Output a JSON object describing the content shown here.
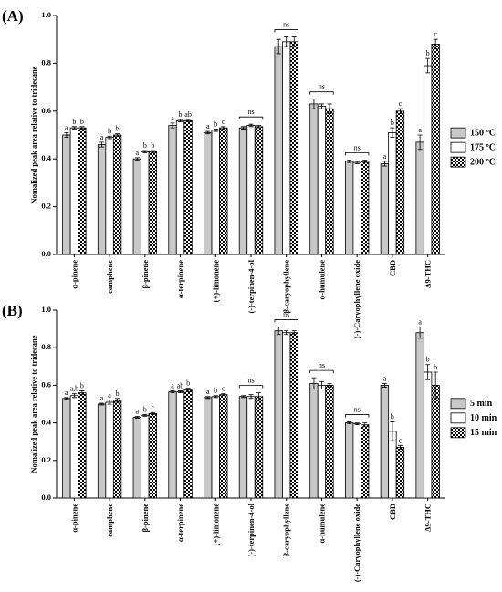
{
  "chart_data": [
    {
      "type": "bar",
      "panel_label": "(A)",
      "ylabel": "Nomalized peak area relative to tridecane",
      "categories": [
        "α-pinene",
        "camphene",
        "β-pinene",
        "α-terpinene",
        "(+)-limonene",
        "(-)-terpinen-4-ol",
        "β-caryophyllene",
        "α-humulene",
        "(-)-Caryophyllene oxide",
        "CBD",
        "Δ9-THC"
      ],
      "series": [
        {
          "name": "150 ºC",
          "color": "#c8c8c8",
          "pattern": null,
          "values": [
            0.5,
            0.46,
            0.4,
            0.54,
            0.51,
            0.53,
            0.87,
            0.63,
            0.39,
            0.38,
            0.47
          ],
          "errors": [
            0.01,
            0.01,
            0.005,
            0.01,
            0.005,
            0.005,
            0.03,
            0.02,
            0.005,
            0.01,
            0.03
          ],
          "letters": [
            "a",
            "a",
            "a",
            "a",
            "a",
            null,
            null,
            null,
            null,
            "a",
            "a"
          ]
        },
        {
          "name": "175 ºC",
          "color": "#ffffff",
          "pattern": null,
          "values": [
            0.53,
            0.49,
            0.43,
            0.56,
            0.52,
            0.54,
            0.89,
            0.62,
            0.385,
            0.51,
            0.79
          ],
          "errors": [
            0.005,
            0.005,
            0.005,
            0.005,
            0.005,
            0.005,
            0.02,
            0.01,
            0.005,
            0.02,
            0.03
          ],
          "letters": [
            "b",
            "b",
            "b",
            "b",
            "b",
            null,
            null,
            null,
            null,
            "b",
            "b"
          ]
        },
        {
          "name": "200 ºC",
          "color": "#000000",
          "pattern": "checker",
          "values": [
            0.53,
            0.5,
            0.43,
            0.56,
            0.53,
            0.535,
            0.89,
            0.61,
            0.39,
            0.6,
            0.88
          ],
          "errors": [
            0.005,
            0.005,
            0.005,
            0.005,
            0.005,
            0.005,
            0.02,
            0.02,
            0.005,
            0.01,
            0.02
          ],
          "letters": [
            "b",
            "b",
            "b",
            "ab",
            "c",
            null,
            null,
            null,
            null,
            "c",
            "c"
          ]
        }
      ],
      "group_labels": [
        null,
        null,
        null,
        null,
        null,
        "ns",
        "ns",
        "ns",
        "ns",
        null,
        null
      ],
      "ylim": [
        0,
        1
      ],
      "yticks": [
        {
          "value": 0,
          "label": "0.0"
        },
        0.2,
        0.4,
        0.6,
        0.8,
        {
          "value": 1,
          "label": "1.0"
        }
      ],
      "legend": "right"
    },
    {
      "type": "bar",
      "panel_label": "(B)",
      "ylabel": "Nomalized peak area relative to tridecane",
      "categories": [
        "α-pinene",
        "camphene",
        "β-pinene",
        "α-terpinene",
        "(+)-limonene",
        "(-)-terpinen-4-ol",
        "β-caryophyllene",
        "α-humulene",
        "(-)-Caryophyllene oxide",
        "CBD",
        "Δ9-THC"
      ],
      "series": [
        {
          "name": "5 min",
          "color": "#c8c8c8",
          "pattern": null,
          "values": [
            0.53,
            0.5,
            0.43,
            0.565,
            0.535,
            0.54,
            0.89,
            0.61,
            0.4,
            0.6,
            0.88
          ],
          "errors": [
            0.005,
            0.005,
            0.005,
            0.005,
            0.005,
            0.005,
            0.02,
            0.03,
            0.005,
            0.01,
            0.03
          ],
          "letters": [
            "a",
            "a",
            "a",
            "a",
            "a",
            null,
            null,
            null,
            null,
            "a",
            "a"
          ]
        },
        {
          "name": "10 min",
          "color": "#ffffff",
          "pattern": null,
          "values": [
            0.545,
            0.51,
            0.44,
            0.565,
            0.54,
            0.54,
            0.88,
            0.6,
            0.395,
            0.355,
            0.67
          ],
          "errors": [
            0.01,
            0.01,
            0.005,
            0.005,
            0.005,
            0.01,
            0.01,
            0.02,
            0.005,
            0.05,
            0.04
          ],
          "letters": [
            "a,b",
            "a",
            "b",
            "ab",
            "b",
            null,
            null,
            null,
            null,
            "b",
            "b"
          ]
        },
        {
          "name": "15 min",
          "color": "#000000",
          "pattern": "checker",
          "values": [
            0.56,
            0.52,
            0.45,
            0.575,
            0.55,
            0.54,
            0.88,
            0.6,
            0.39,
            0.27,
            0.6
          ],
          "errors": [
            0.01,
            0.01,
            0.005,
            0.01,
            0.005,
            0.02,
            0.01,
            0.01,
            0.01,
            0.01,
            0.07
          ],
          "letters": [
            "b",
            "b",
            "c",
            "b",
            "c",
            null,
            null,
            null,
            null,
            "c",
            "b"
          ]
        }
      ],
      "group_labels": [
        null,
        null,
        null,
        null,
        null,
        "ns",
        "ns",
        "ns",
        "ns",
        null,
        null
      ],
      "ylim": [
        0,
        1
      ],
      "yticks": [
        {
          "value": 0,
          "label": "0.0"
        },
        0.2,
        0.4,
        0.6,
        0.8,
        {
          "value": 1,
          "label": "1.0"
        }
      ],
      "legend": "right"
    }
  ]
}
